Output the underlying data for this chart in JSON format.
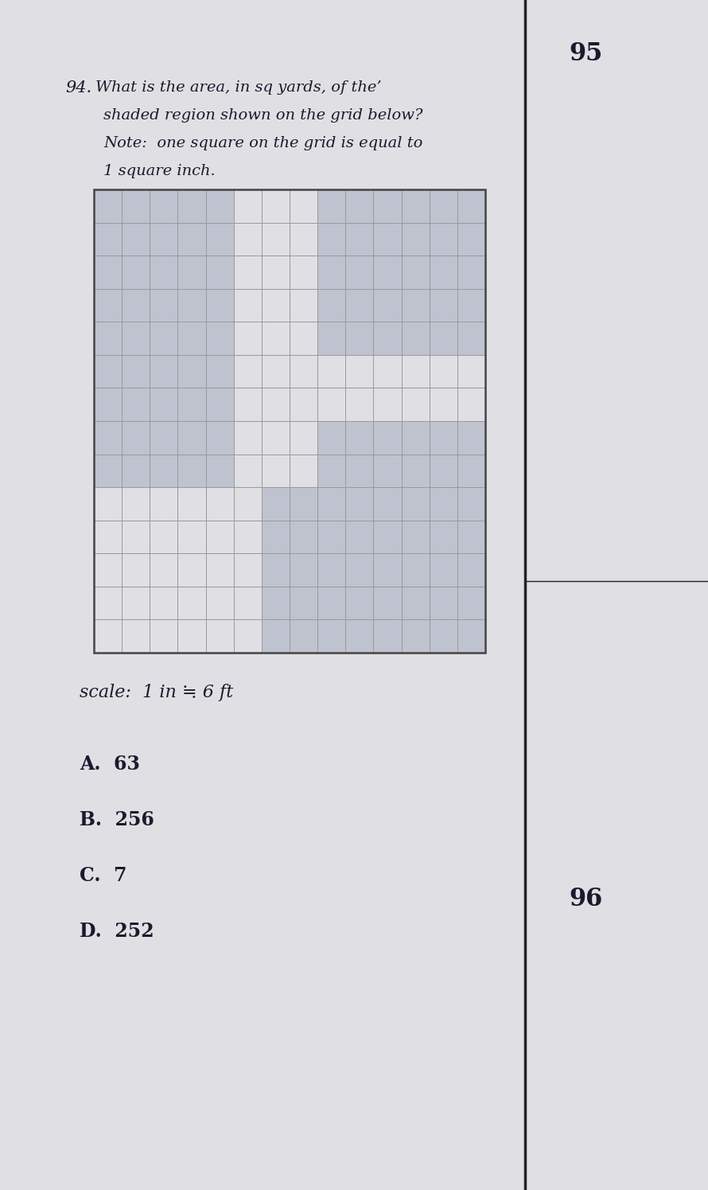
{
  "page_number_top": "95",
  "page_number_bottom": "96",
  "question_number": "94.",
  "question_text_line1": "What is the area, in sq yards, of the’",
  "question_text_line2": "shaded region shown on the grid below?",
  "question_text_line3": "Note:  one square on the grid is equal to",
  "question_text_line4": "1 square inch.",
  "scale_text": "scale:  1 in ≒ 6 ft",
  "choices": [
    "A.  63",
    "B.  256",
    "C.  7",
    "D.  252"
  ],
  "bg_color": "#e0e0e4",
  "grid_line_color": "#999999",
  "shaded_color": "#bfc3cf",
  "text_color": "#1a1a2e",
  "border_line_color": "#222222",
  "fig_bg": "#c8c8d0",
  "grid_cols": 14,
  "grid_rows": 14
}
